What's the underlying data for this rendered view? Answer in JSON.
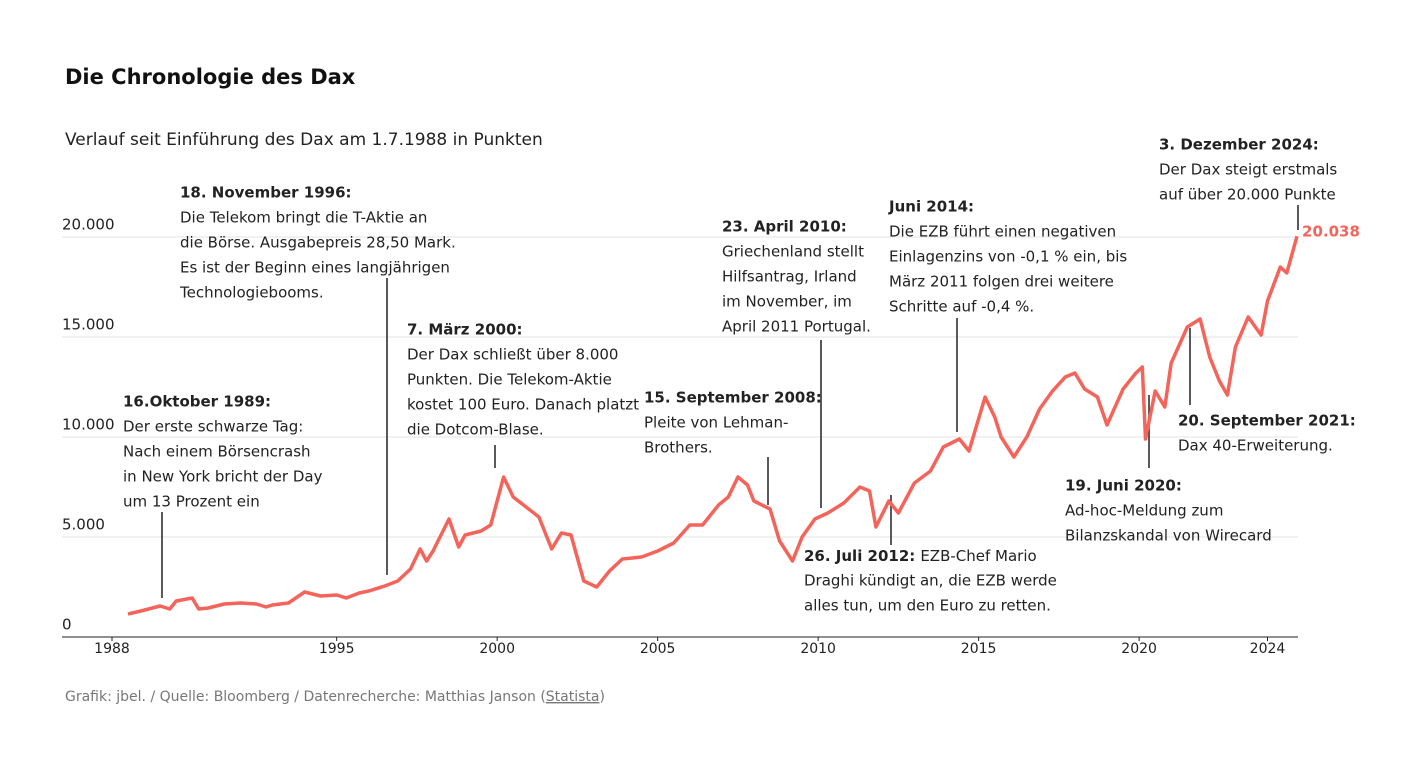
{
  "chart_data": {
    "type": "line",
    "title": "Die Chronologie des Dax",
    "subtitle": "Verlauf seit Einführung des Dax am 1.7.1988 in Punkten",
    "color": "#f4645a",
    "x": [
      1988.5,
      1988.9,
      1989.5,
      1989.8,
      1990.0,
      1990.5,
      1990.7,
      1991.0,
      1991.5,
      1992.0,
      1992.5,
      1992.8,
      1993.0,
      1993.5,
      1994.0,
      1994.5,
      1995.0,
      1995.3,
      1995.7,
      1996.0,
      1996.5,
      1996.9,
      1997.3,
      1997.6,
      1997.8,
      1998.0,
      1998.5,
      1998.8,
      1999.0,
      1999.5,
      1999.8,
      2000.2,
      2000.5,
      2000.9,
      2001.3,
      2001.7,
      2002.0,
      2002.3,
      2002.7,
      2003.1,
      2003.5,
      2003.9,
      2004.5,
      2005.0,
      2005.5,
      2006.0,
      2006.4,
      2006.9,
      2007.2,
      2007.5,
      2007.8,
      2008.0,
      2008.5,
      2008.8,
      2009.2,
      2009.5,
      2009.9,
      2010.3,
      2010.8,
      2011.3,
      2011.6,
      2011.8,
      2012.2,
      2012.5,
      2013.0,
      2013.5,
      2013.9,
      2014.4,
      2014.7,
      2015.2,
      2015.5,
      2015.7,
      2016.1,
      2016.5,
      2016.9,
      2017.3,
      2017.7,
      2018.0,
      2018.3,
      2018.7,
      2019.0,
      2019.5,
      2019.9,
      2020.1,
      2020.2,
      2020.5,
      2020.8,
      2021.0,
      2021.5,
      2021.9,
      2022.2,
      2022.5,
      2022.75,
      2023.0,
      2023.4,
      2023.8,
      2024.0,
      2024.4,
      2024.6,
      2024.92
    ],
    "values": [
      1150,
      1300,
      1550,
      1400,
      1800,
      1950,
      1400,
      1450,
      1650,
      1700,
      1650,
      1500,
      1600,
      1700,
      2250,
      2050,
      2100,
      1950,
      2200,
      2300,
      2550,
      2800,
      3400,
      4400,
      3800,
      4300,
      5900,
      4500,
      5100,
      5300,
      5600,
      8000,
      7000,
      6500,
      6000,
      4400,
      5200,
      5100,
      2800,
      2500,
      3300,
      3900,
      4000,
      4300,
      4700,
      5600,
      5600,
      6600,
      7000,
      8000,
      7600,
      6800,
      6400,
      4800,
      3800,
      5000,
      5900,
      6200,
      6700,
      7500,
      7300,
      5500,
      6800,
      6200,
      7700,
      8300,
      9500,
      9900,
      9300,
      12000,
      11000,
      10000,
      9000,
      10000,
      11400,
      12300,
      13000,
      13200,
      12400,
      12000,
      10600,
      12400,
      13200,
      13500,
      9900,
      12300,
      11500,
      13700,
      15500,
      15900,
      14000,
      12800,
      12100,
      14500,
      16000,
      15100,
      16800,
      18500,
      18200,
      20038
    ],
    "value_labels": [
      null,
      null,
      null,
      null,
      null,
      null,
      null,
      null,
      null,
      null,
      null,
      null,
      null,
      null,
      null,
      null,
      null,
      null,
      null,
      null,
      null,
      null,
      null,
      null,
      null,
      null,
      null,
      null,
      null,
      null,
      null,
      null,
      null,
      null,
      null,
      null,
      null,
      null,
      null,
      null,
      null,
      null,
      null,
      null,
      null,
      null,
      null,
      null,
      null,
      null,
      null,
      null,
      null,
      null,
      null,
      null,
      null,
      null,
      null,
      null,
      null,
      null,
      null,
      null,
      null,
      null,
      null,
      null,
      null,
      null,
      null,
      null,
      null,
      null,
      null,
      null,
      null,
      null,
      null,
      null,
      null,
      null,
      null,
      null,
      null,
      null,
      null,
      null,
      null,
      null,
      null,
      null,
      null,
      null,
      null,
      null,
      null,
      null,
      null,
      "20.038"
    ],
    "xlim": [
      1988,
      2024.95
    ],
    "xticks": [
      1988,
      1995,
      2000,
      2005,
      2010,
      2015,
      2020,
      2024
    ],
    "ylim": [
      0,
      20000
    ],
    "yticks": [
      0,
      {
        "value": 5000,
        "label": "5.000"
      },
      {
        "value": 10000,
        "label": "10.000"
      },
      {
        "value": 15000,
        "label": "15.000"
      },
      {
        "value": 20000,
        "label": "20.000"
      }
    ],
    "grid": true,
    "annotations": [
      {
        "title": "16.Oktober 1989:",
        "lines": [
          "Der erste schwarze Tag:",
          "Nach einem Börsencrash",
          "in New York bricht der Day",
          "um 13 Prozent ein"
        ]
      },
      {
        "title": "18. November 1996:",
        "lines": [
          "Die Telekom bringt die T-Aktie an",
          "die Börse. Ausgabepreis 28,50 Mark.",
          "Es ist der Beginn eines langjährigen",
          "Technologiebooms."
        ]
      },
      {
        "title": "7. März 2000:",
        "lines": [
          "Der Dax schließt über 8.000",
          "Punkten. Die Telekom-Aktie",
          "kostet 100 Euro. Danach platzt",
          "die Dotcom-Blase."
        ]
      },
      {
        "title": "15. September 2008:",
        "lines": [
          "Pleite von Lehman-",
          "Brothers."
        ]
      },
      {
        "title": "23. April 2010:",
        "lines": [
          "Griechenland stellt",
          "Hilfsantrag, Irland",
          "im November, im",
          "April 2011 Portugal."
        ]
      },
      {
        "title": "Juni 2014:",
        "lines": [
          "Die EZB führt einen negativen",
          "Einlagenzins von -0,1 % ein, bis",
          "März 2011 folgen drei weitere",
          "Schritte auf -0,4 %."
        ]
      },
      {
        "title": "3. Dezember 2024:",
        "lines": [
          "Der Dax steigt erstmals",
          "auf über 20.000 Punkte"
        ]
      },
      {
        "title": "26. Juli 2012:",
        "lines": [
          "EZB-Chef Mario",
          "Draghi kündigt an, die EZB werde",
          "alles tun, um den Euro zu retten."
        ]
      },
      {
        "title": "19. Juni 2020:",
        "lines": [
          "Ad-hoc-Meldung zum",
          "Bilanzskandal von Wirecard"
        ]
      },
      {
        "title": "20. September 2021:",
        "lines": [
          "Dax 40-Erweiterung."
        ]
      }
    ],
    "footer": {
      "prefix": "Grafik: jbel. / Quelle: Bloomberg / Datenrecherche: Matthias Janson (",
      "link": "Statista",
      "suffix": ")"
    }
  }
}
